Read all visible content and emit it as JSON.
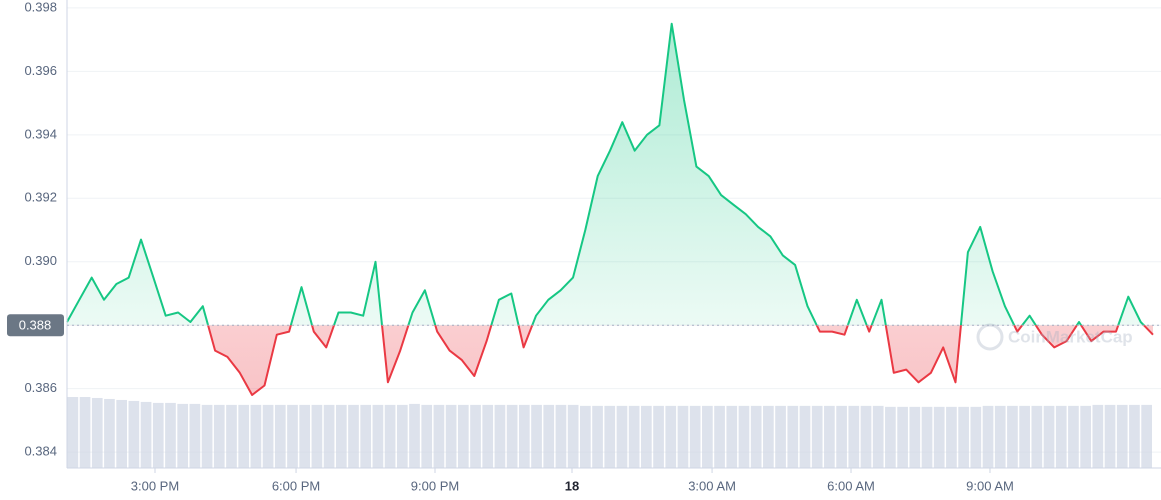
{
  "chart_data": {
    "type": "line",
    "values": [
      0.3881,
      0.3888,
      0.3895,
      0.3888,
      0.3893,
      0.3895,
      0.3907,
      0.3895,
      0.3883,
      0.3884,
      0.3881,
      0.3886,
      0.3872,
      0.387,
      0.3865,
      0.3858,
      0.3861,
      0.3877,
      0.3878,
      0.3892,
      0.3878,
      0.3873,
      0.3884,
      0.3884,
      0.3883,
      0.39,
      0.3862,
      0.3872,
      0.3884,
      0.3891,
      0.3878,
      0.3872,
      0.3869,
      0.3864,
      0.3875,
      0.3888,
      0.389,
      0.3873,
      0.3883,
      0.3888,
      0.3891,
      0.3895,
      0.391,
      0.3927,
      0.3935,
      0.3944,
      0.3935,
      0.394,
      0.3943,
      0.3975,
      0.3951,
      0.393,
      0.3927,
      0.3921,
      0.3918,
      0.3915,
      0.3911,
      0.3908,
      0.3902,
      0.3899,
      0.3886,
      0.3878,
      0.3878,
      0.3877,
      0.3888,
      0.3878,
      0.3888,
      0.3865,
      0.3866,
      0.3862,
      0.3865,
      0.3873,
      0.3862,
      0.3903,
      0.3911,
      0.3897,
      0.3886,
      0.3878,
      0.3883,
      0.3877,
      0.3873,
      0.3875,
      0.3881,
      0.3875,
      0.3878,
      0.3878,
      0.3889,
      0.3881,
      0.3877
    ],
    "volume": [
      72,
      72,
      71,
      70,
      69,
      68,
      67,
      66,
      66,
      65,
      65,
      64,
      64,
      64,
      64,
      64,
      64,
      64,
      64,
      64,
      64,
      64,
      64,
      64,
      64,
      64,
      64,
      64,
      65,
      64,
      64,
      64,
      64,
      64,
      64,
      64,
      64,
      64,
      64,
      64,
      64,
      64,
      63,
      63,
      63,
      63,
      63,
      63,
      63,
      63,
      63,
      63,
      63,
      63,
      63,
      63,
      63,
      63,
      63,
      63,
      63,
      63,
      63,
      63,
      63,
      63,
      63,
      62,
      62,
      62,
      62,
      62,
      62,
      62,
      62,
      63,
      63,
      63,
      63,
      63,
      63,
      63,
      63,
      63,
      64,
      64,
      64,
      64,
      64
    ],
    "baseline": 0.388,
    "color_up": "#16c784",
    "color_down": "#ea3943",
    "volume_color": "#cfd6e4",
    "xlim": [
      0,
      88
    ],
    "xticks": [
      {
        "value": 7.13,
        "label": "3:00 PM"
      },
      {
        "value": 18.56,
        "label": "6:00 PM"
      },
      {
        "value": 29.82,
        "label": "9:00 PM"
      },
      {
        "value": 40.92,
        "label": "18",
        "bold": true
      },
      {
        "value": 52.27,
        "label": "3:00 AM"
      },
      {
        "value": 63.53,
        "label": "6:00 AM"
      },
      {
        "value": 74.79,
        "label": "9:00 AM"
      }
    ],
    "ylim": [
      0.3835,
      0.39825
    ],
    "yticks": [
      0.384,
      0.386,
      0.388,
      {
        "value": 0.39,
        "label": "0.390"
      },
      0.392,
      0.394,
      0.396,
      0.398
    ],
    "grid": true,
    "watermark": "CoinMarketCap"
  }
}
